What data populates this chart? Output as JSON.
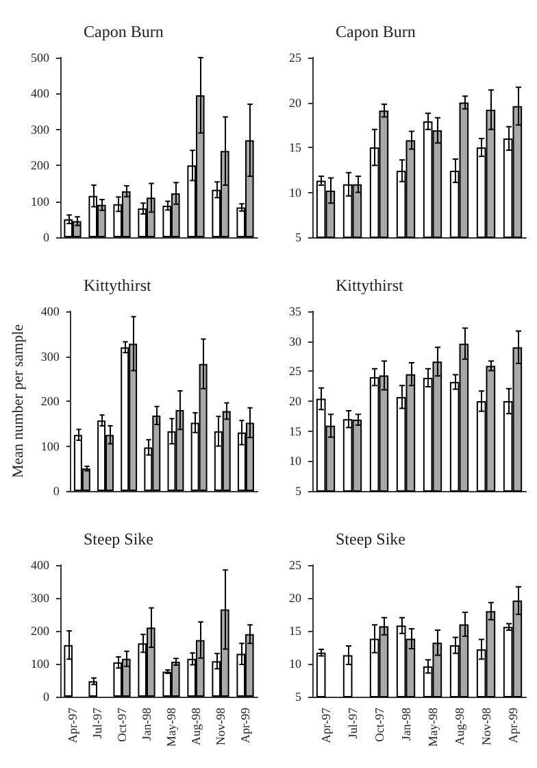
{
  "chart_data": [
    {
      "type": "bar",
      "title": "Capon Burn",
      "categories": [
        null,
        null,
        null,
        null,
        null,
        null,
        null,
        null
      ],
      "ylim": [
        0,
        500
      ],
      "yticks": [
        0,
        100,
        200,
        300,
        400,
        500
      ],
      "tick_labels": "y",
      "series": [
        {
          "color": "#ffffff",
          "values": [
            50,
            115,
            92,
            80,
            88,
            200,
            132,
            83
          ],
          "errors": [
            12,
            30,
            20,
            15,
            12,
            42,
            22,
            10
          ]
        },
        {
          "color": "#a8a8a8",
          "values": [
            45,
            90,
            128,
            110,
            122,
            395,
            240,
            270
          ],
          "errors": [
            12,
            15,
            15,
            40,
            30,
            105,
            95,
            100
          ]
        }
      ]
    },
    {
      "type": "bar",
      "title": "Capon Burn",
      "categories": [
        null,
        null,
        null,
        null,
        null,
        null,
        null,
        null
      ],
      "ylim": [
        5,
        25
      ],
      "yticks": [
        5,
        10,
        15,
        20,
        25
      ],
      "tick_labels": "y",
      "series": [
        {
          "color": "#ffffff",
          "values": [
            11.3,
            10.9,
            15,
            12.4,
            17.9,
            12.4,
            15,
            16
          ],
          "errors": [
            0.5,
            1.3,
            2,
            1.2,
            0.9,
            1.3,
            1,
            1.3
          ]
        },
        {
          "color": "#a8a8a8",
          "values": [
            10.2,
            10.9,
            19.1,
            15.8,
            16.9,
            20,
            19.2,
            19.6
          ],
          "errors": [
            1.4,
            0.9,
            0.7,
            1,
            1.4,
            0.7,
            2.2,
            2.1
          ]
        }
      ]
    },
    {
      "type": "bar",
      "title": "Kittythirst",
      "ylabel": "Mean number per sample",
      "categories": [
        null,
        null,
        null,
        null,
        null,
        null,
        null,
        null
      ],
      "ylim": [
        0,
        400
      ],
      "yticks": [
        0,
        100,
        200,
        300,
        400
      ],
      "tick_labels": "y",
      "series": [
        {
          "color": "#ffffff",
          "values": [
            125,
            157,
            320,
            97,
            133,
            152,
            133,
            130
          ],
          "errors": [
            12,
            12,
            12,
            17,
            28,
            22,
            33,
            27
          ]
        },
        {
          "color": "#a8a8a8",
          "values": [
            50,
            125,
            328,
            168,
            180,
            283,
            178,
            152
          ],
          "errors": [
            5,
            20,
            60,
            20,
            43,
            55,
            18,
            33
          ]
        }
      ]
    },
    {
      "type": "bar",
      "title": "Kittythirst",
      "categories": [
        null,
        null,
        null,
        null,
        null,
        null,
        null,
        null
      ],
      "ylim": [
        5,
        35
      ],
      "yticks": [
        5,
        10,
        15,
        20,
        25,
        30,
        35
      ],
      "tick_labels": "y",
      "series": [
        {
          "color": "#ffffff",
          "values": [
            20.4,
            17,
            24,
            20.7,
            23.9,
            23.2,
            20,
            20
          ],
          "errors": [
            1.8,
            1.4,
            1.4,
            1.9,
            1.5,
            1.2,
            1.7,
            2.1
          ]
        },
        {
          "color": "#a8a8a8",
          "values": [
            15.9,
            16.9,
            24.3,
            24.5,
            26.6,
            29.6,
            25.9,
            29
          ],
          "errors": [
            1.9,
            0.9,
            2.4,
            1.9,
            2.4,
            2.6,
            0.8,
            2.7
          ]
        }
      ]
    },
    {
      "type": "bar",
      "title": "Steep Sike",
      "categories": [
        "Apr-97",
        "Jul-97",
        "Oct-97",
        "Jan-98",
        "May-98",
        "Aug-98",
        "Nov-98",
        "Apr-99"
      ],
      "ylim": [
        0,
        400
      ],
      "yticks": [
        0,
        100,
        200,
        300,
        400
      ],
      "series": [
        {
          "color": "#ffffff",
          "values": [
            157,
            47,
            104,
            162,
            76,
            115,
            108,
            130
          ],
          "errors": [
            43,
            10,
            17,
            27,
            5,
            18,
            23,
            32
          ]
        },
        {
          "color": "#a8a8a8",
          "values": [
            null,
            null,
            115,
            210,
            106,
            172,
            265,
            190
          ],
          "errors": [
            null,
            null,
            23,
            60,
            10,
            55,
            120,
            28
          ]
        }
      ]
    },
    {
      "type": "bar",
      "title": "Steep Sike",
      "categories": [
        "Apr-97",
        "Jul-97",
        "Oct-97",
        "Jan-98",
        "May-98",
        "Aug-98",
        "Nov-98",
        "Apr-99"
      ],
      "ylim": [
        5,
        25
      ],
      "yticks": [
        5,
        10,
        15,
        20,
        25
      ],
      "series": [
        {
          "color": "#ffffff",
          "values": [
            11.7,
            11.3,
            13.8,
            15.8,
            9.6,
            12.8,
            12.2,
            15.6
          ],
          "errors": [
            0.5,
            1.4,
            2.1,
            1.2,
            1,
            1.2,
            1.5,
            0.5
          ]
        },
        {
          "color": "#a8a8a8",
          "values": [
            null,
            null,
            15.7,
            13.8,
            13.2,
            16,
            18,
            19.6
          ],
          "errors": [
            null,
            null,
            1.3,
            1.5,
            1.9,
            1.8,
            1.3,
            2.1
          ]
        }
      ]
    }
  ]
}
